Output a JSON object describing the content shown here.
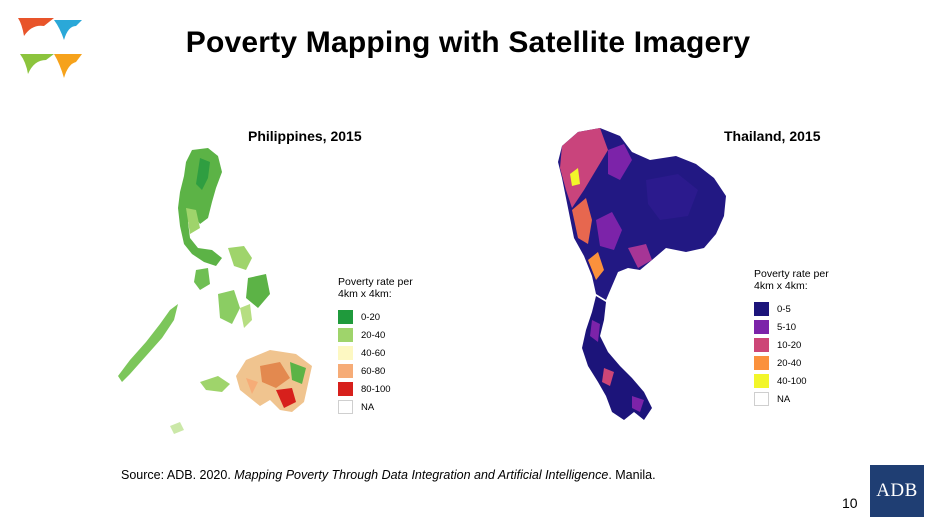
{
  "slide": {
    "title": "Poverty Mapping with Satellite Imagery",
    "page_number": "10",
    "brand_logo_text": "ADB"
  },
  "maps": [
    {
      "id": "philippines",
      "title": "Philippines, 2015",
      "legend": {
        "title_line1": "Poverty rate per",
        "title_line2": "4km x 4km:",
        "items": [
          {
            "label": "0-20",
            "color": "#1f9a3c"
          },
          {
            "label": "20-40",
            "color": "#9fd46b"
          },
          {
            "label": "40-60",
            "color": "#fdf8c2"
          },
          {
            "label": "60-80",
            "color": "#f6ac77"
          },
          {
            "label": "80-100",
            "color": "#d7201c"
          },
          {
            "label": "NA",
            "color": "#ffffff"
          }
        ]
      }
    },
    {
      "id": "thailand",
      "title": "Thailand, 2015",
      "legend": {
        "title_line1": "Poverty rate per",
        "title_line2": "4km x 4km:",
        "items": [
          {
            "label": "0-5",
            "color": "#1c147a"
          },
          {
            "label": "5-10",
            "color": "#7c23a9"
          },
          {
            "label": "10-20",
            "color": "#cd4677"
          },
          {
            "label": "20-40",
            "color": "#fb913c"
          },
          {
            "label": "40-100",
            "color": "#f2f62a"
          },
          {
            "label": "NA",
            "color": "#ffffff"
          }
        ]
      }
    }
  ],
  "source": {
    "prefix": "Source: ADB. 2020. ",
    "work_title": "Mapping Poverty Through Data Integration and Artificial Intelligence",
    "suffix": ". Manila."
  }
}
